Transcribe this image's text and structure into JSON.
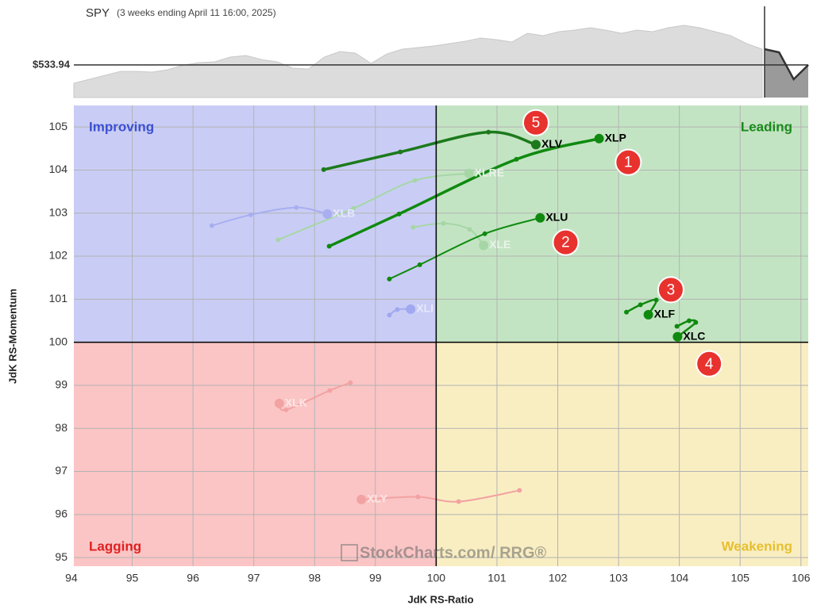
{
  "chart_data": [
    {
      "type": "area",
      "title": "SPY",
      "subtitle": "(3 weeks ending April 11 16:00, 2025)",
      "reference": {
        "value": 533.94,
        "label": "$533.94"
      },
      "ylim": [
        500,
        595
      ],
      "history_color": "#dcdcdc",
      "window_color": "#9a9a9a",
      "values": [
        514.9,
        519.0,
        523.1,
        527.3,
        527.3,
        526.4,
        528.9,
        533.9,
        536.3,
        537.2,
        542.1,
        543.8,
        539.6,
        537.2,
        530.6,
        529.7,
        542.1,
        547.9,
        546.3,
        535.5,
        545.4,
        550.4,
        552.0,
        553.7,
        556.2,
        558.6,
        562.0,
        560.3,
        557.8,
        566.9,
        564.4,
        568.6,
        570.2,
        572.7,
        570.2,
        566.9,
        570.2,
        568.6,
        572.7,
        575.2,
        572.7,
        568.6,
        564.4,
        556.2,
        550.4
      ],
      "window_values": [
        550.4,
        547.1,
        519.0,
        533.94
      ]
    },
    {
      "type": "rrg",
      "xlabel": "JdK RS-Ratio",
      "ylabel": "JdK RS-Momentum",
      "xlim": [
        94.04,
        106.12
      ],
      "ylim": [
        94.8,
        105.5
      ],
      "xticks": [
        94,
        95,
        96,
        97,
        98,
        99,
        100,
        101,
        102,
        103,
        104,
        105,
        106
      ],
      "yticks": [
        95,
        96,
        97,
        98,
        99,
        100,
        101,
        102,
        103,
        104,
        105
      ],
      "grid": true,
      "center": {
        "x": 100,
        "y": 100
      },
      "quadrants": [
        {
          "name": "Improving",
          "color": "#3b4fd3",
          "fill": "#c9cdf5",
          "corner": "top-left"
        },
        {
          "name": "Leading",
          "color": "#1a8a1a",
          "fill": "#c3e4c3",
          "corner": "top-right"
        },
        {
          "name": "Lagging",
          "color": "#e02020",
          "fill": "#fbc5c5",
          "corner": "bottom-left"
        },
        {
          "name": "Weakening",
          "color": "#e6bf2e",
          "fill": "#f9eec2",
          "corner": "bottom-right"
        }
      ],
      "series": [
        {
          "name": "XLE",
          "color": "#a6d6a6",
          "label_color": "#e8f4e8",
          "width": 2,
          "x": [
            99.62,
            100.12,
            100.55,
            100.78
          ],
          "values": [
            102.67,
            102.76,
            102.62,
            102.25
          ]
        },
        {
          "name": "XLRE",
          "color": "#a6d6a6",
          "label_color": "#e8f4e8",
          "width": 2,
          "x": [
            97.4,
            98.64,
            99.65,
            100.54
          ],
          "values": [
            102.38,
            103.11,
            103.76,
            103.92
          ]
        },
        {
          "name": "XLB",
          "color": "#a8aef0",
          "label_color": "#e6e8fb",
          "width": 2,
          "x": [
            96.31,
            96.95,
            97.7,
            98.21
          ],
          "values": [
            102.71,
            102.96,
            103.13,
            102.98
          ]
        },
        {
          "name": "XLI",
          "color": "#a0a8ef",
          "label_color": "#e6e8fb",
          "width": 2,
          "x": [
            99.23,
            99.36,
            99.58
          ],
          "values": [
            100.63,
            100.76,
            100.77
          ]
        },
        {
          "name": "XLK",
          "color": "#f2a2a2",
          "label_color": "#fde6e6",
          "width": 2,
          "x": [
            98.59,
            98.25,
            97.53,
            97.42
          ],
          "values": [
            99.06,
            98.88,
            98.43,
            98.58
          ]
        },
        {
          "name": "XLY",
          "color": "#f2a2a2",
          "label_color": "#fde6e6",
          "width": 2,
          "x": [
            101.37,
            100.37,
            99.7,
            98.77
          ],
          "values": [
            96.56,
            96.3,
            96.41,
            96.35
          ]
        },
        {
          "name": "XLU",
          "color": "#0f8a0f",
          "label_color": "#000000",
          "width": 2,
          "x": [
            99.23,
            99.73,
            100.8,
            101.71
          ],
          "values": [
            101.47,
            101.8,
            102.52,
            102.89
          ]
        },
        {
          "name": "XLF",
          "color": "#0f8a0f",
          "label_color": "#000000",
          "width": 2.5,
          "x": [
            103.13,
            103.36,
            103.62,
            103.49
          ],
          "values": [
            100.7,
            100.87,
            100.98,
            100.64
          ]
        },
        {
          "name": "XLC",
          "color": "#0f8a0f",
          "label_color": "#000000",
          "width": 2.5,
          "x": [
            103.96,
            104.16,
            104.27,
            103.97
          ],
          "values": [
            100.37,
            100.5,
            100.46,
            100.13
          ]
        },
        {
          "name": "XLV",
          "color": "#1c7a1c",
          "label_color": "#000000",
          "width": 3.5,
          "x": [
            98.15,
            99.41,
            100.86,
            101.64
          ],
          "values": [
            104.01,
            104.42,
            104.88,
            104.59
          ]
        },
        {
          "name": "XLP",
          "color": "#0f8a0f",
          "label_color": "#000000",
          "width": 3.5,
          "x": [
            98.24,
            99.39,
            101.32,
            102.68
          ],
          "values": [
            102.23,
            102.98,
            104.25,
            104.73
          ]
        }
      ],
      "annotations": [
        {
          "text": "1",
          "x": 103.16,
          "y": 104.18
        },
        {
          "text": "2",
          "x": 102.13,
          "y": 102.32
        },
        {
          "text": "3",
          "x": 103.86,
          "y": 101.22
        },
        {
          "text": "4",
          "x": 104.49,
          "y": 99.5
        },
        {
          "text": "5",
          "x": 101.64,
          "y": 105.1
        }
      ],
      "watermark": {
        "brand": "StockCharts.com",
        "product": "/ RRG®"
      }
    }
  ]
}
